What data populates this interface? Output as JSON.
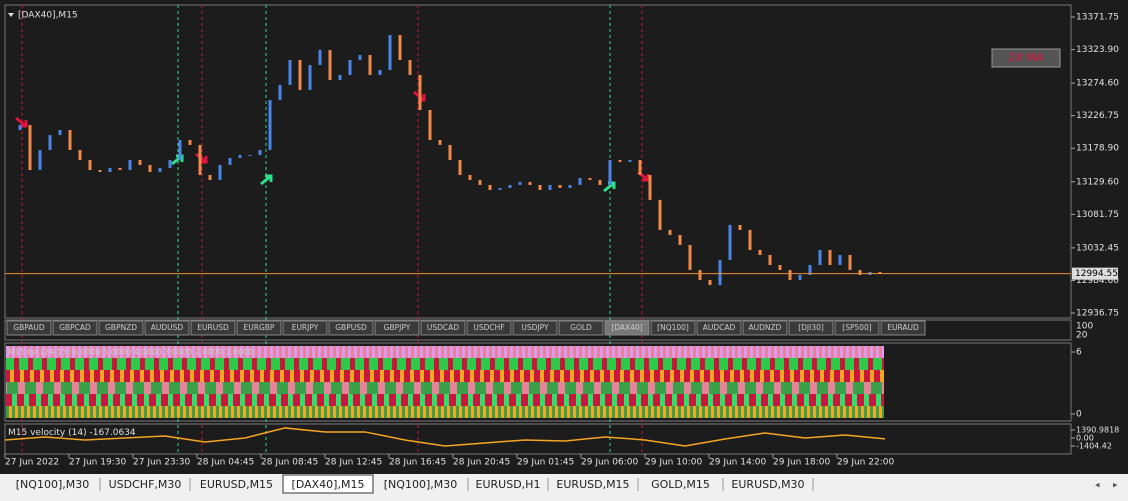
{
  "chart_data": {
    "type": "candlestick",
    "title": "[DAX40],M15",
    "x_labels": [
      "27 Jun 2022",
      "27 Jun 19:30",
      "27 Jun 23:30",
      "28 Jun 04:45",
      "28 Jun 08:45",
      "28 Jun 12:45",
      "28 Jun 16:45",
      "28 Jun 20:45",
      "29 Jun 01:45",
      "29 Jun 06:00",
      "29 Jun 10:00",
      "29 Jun 14:00",
      "29 Jun 18:00",
      "29 Jun 22:00"
    ],
    "close": [
      13205.7,
      13213.0,
      13146.9,
      13176.3,
      13198.3,
      13205.7,
      13176.3,
      13161.6,
      13146.9,
      13144.0,
      13149.9,
      13146.9,
      13161.6,
      13154.3,
      13144.0,
      13149.9,
      13161.6,
      13191.0,
      13183.7,
      13139.6,
      13132.3,
      13154.3,
      13164.6,
      13169.0,
      13169.0,
      13176.3,
      13249.8,
      13271.9,
      13308.6,
      13264.5,
      13301.2,
      13323.3,
      13279.2,
      13286.6,
      13308.6,
      13315.9,
      13286.6,
      13293.9,
      13345.3,
      13308.6,
      13286.6,
      13235.1,
      13191.0,
      13183.7,
      13161.6,
      13139.6,
      13132.3,
      13124.9,
      13117.6,
      13120.5,
      13124.9,
      13129.3,
      13124.9,
      13117.6,
      13124.9,
      13120.5,
      13124.9,
      13135.2,
      13132.3,
      13124.9,
      13161.6,
      13158.7,
      13161.6,
      13139.6,
      13102.9,
      13058.8,
      13051.4,
      13036.7,
      12999.9,
      12985.3,
      12977.9,
      13014.7,
      13066.1,
      13058.8,
      13029.4,
      13022.0,
      13007.3,
      12999.9,
      12985.3,
      12992.6,
      13007.3,
      13029.4,
      13007.3,
      13022.0,
      12999.9,
      12992.6,
      12997.0,
      12994.55
    ],
    "up_color": "#4a86e8",
    "down_color": "#f08a4b",
    "ylim": [
      12929.4,
      13389.4
    ],
    "yticks": [
      13371.75,
      13323.9,
      13274.6,
      13226.75,
      13178.9,
      13129.6,
      13081.75,
      13032.45,
      12984.6,
      12936.75
    ],
    "yticks_labels": [
      "13371.75",
      "13323.90",
      "13274.60",
      "13226.75",
      "13178.90",
      "13129.60",
      "13081.75",
      "13032.45",
      "12984.60",
      "12936.75"
    ],
    "current_price": 12994.55,
    "current_color": "#f28c28"
  },
  "button": "2X MA",
  "symbols": [
    "GBPAUD",
    "GBPCAD",
    "GBPNZD",
    "AUDUSD",
    "EURUSD",
    "EURGBP",
    "EURJPY",
    "GBPUSD",
    "GBPJPY",
    "USDCAD",
    "USDCHF",
    "USDJPY",
    "GOLD",
    "[DAX40]",
    "[NQ100]",
    "AUDCAD",
    "AUDNZD",
    "[DJI30]",
    "[SP500]",
    "EURAUD"
  ],
  "symbol_ticks": [
    100,
    20
  ],
  "heat_panel": {
    "label": "M15 tst (24-15) 6.0000 5.0000 4.0000 3.0000 2.0000 1.0000",
    "yticks": [
      6,
      0
    ]
  },
  "velocity_panel": {
    "type": "line",
    "label": "M15 velocity (14)",
    "color": "#f5a623",
    "values": [
      -350,
      175,
      -350,
      0,
      350,
      -700,
      0,
      1750,
      1050,
      1050,
      -350,
      -1400,
      -875,
      -350,
      -525,
      175,
      -350,
      -1400,
      -175,
      875,
      0,
      525,
      -167.0634
    ],
    "ylim": [
      -2802,
      2439.2
    ],
    "yticks": [
      1390.9818,
      {
        "value": 0,
        "label": "0.00"
      },
      -1404.42
    ]
  },
  "tabs": [
    "[NQ100],M30",
    "USDCHF,M30",
    "EURUSD,M15",
    "[DAX40],M15",
    "[NQ100],M30",
    "EURUSD,H1",
    "EURUSD,M15",
    "GOLD,M15",
    "EURUSD,M30"
  ]
}
